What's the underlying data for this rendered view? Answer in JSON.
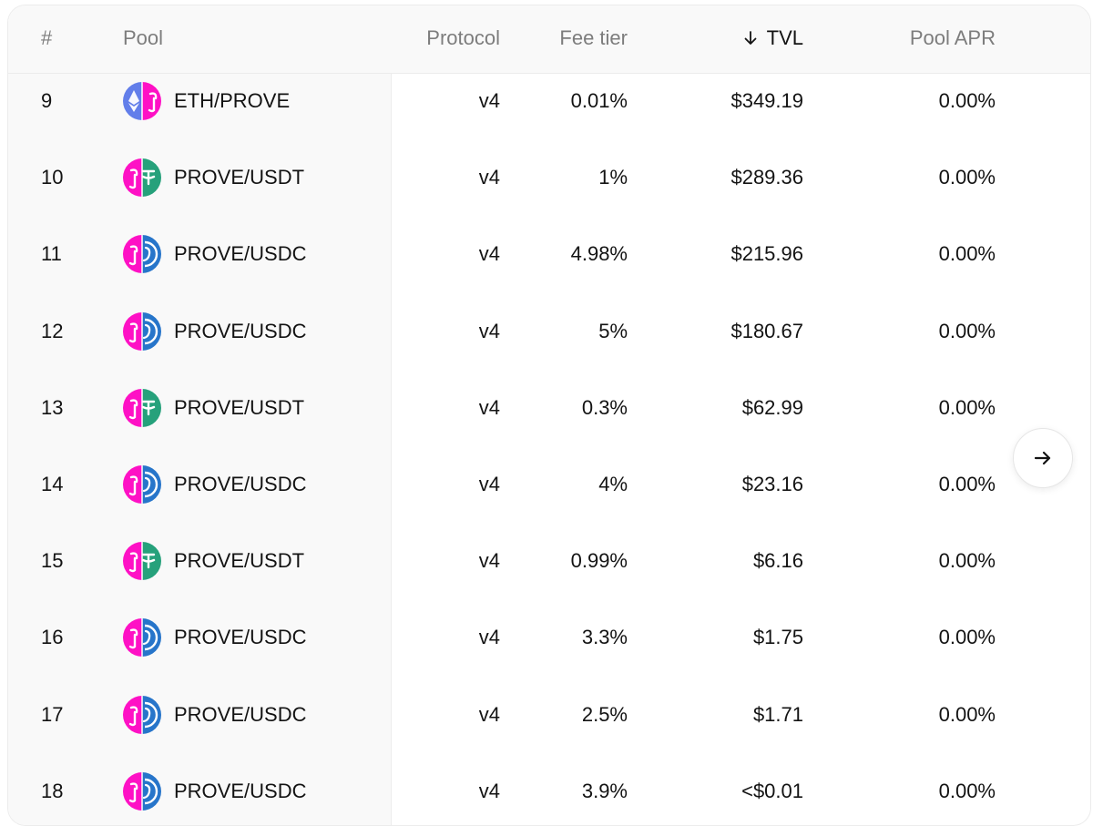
{
  "table": {
    "headers": {
      "index": "#",
      "pool": "Pool",
      "protocol": "Protocol",
      "fee_tier": "Fee tier",
      "tvl": "TVL",
      "pool_apr": "Pool APR"
    },
    "sort": {
      "column": "tvl",
      "direction": "desc",
      "icon": "arrow-down-icon"
    },
    "rows": [
      {
        "index": "9",
        "pool": "ETH/PROVE",
        "protocol": "v4",
        "fee_tier": "0.01%",
        "tvl": "$349.19",
        "pool_apr": "0.00%",
        "icon_pair": [
          "eth",
          "prove"
        ]
      },
      {
        "index": "10",
        "pool": "PROVE/USDT",
        "protocol": "v4",
        "fee_tier": "1%",
        "tvl": "$289.36",
        "pool_apr": "0.00%",
        "icon_pair": [
          "prove",
          "usdt"
        ]
      },
      {
        "index": "11",
        "pool": "PROVE/USDC",
        "protocol": "v4",
        "fee_tier": "4.98%",
        "tvl": "$215.96",
        "pool_apr": "0.00%",
        "icon_pair": [
          "prove",
          "usdc"
        ]
      },
      {
        "index": "12",
        "pool": "PROVE/USDC",
        "protocol": "v4",
        "fee_tier": "5%",
        "tvl": "$180.67",
        "pool_apr": "0.00%",
        "icon_pair": [
          "prove",
          "usdc"
        ]
      },
      {
        "index": "13",
        "pool": "PROVE/USDT",
        "protocol": "v4",
        "fee_tier": "0.3%",
        "tvl": "$62.99",
        "pool_apr": "0.00%",
        "icon_pair": [
          "prove",
          "usdt"
        ]
      },
      {
        "index": "14",
        "pool": "PROVE/USDC",
        "protocol": "v4",
        "fee_tier": "4%",
        "tvl": "$23.16",
        "pool_apr": "0.00%",
        "icon_pair": [
          "prove",
          "usdc"
        ]
      },
      {
        "index": "15",
        "pool": "PROVE/USDT",
        "protocol": "v4",
        "fee_tier": "0.99%",
        "tvl": "$6.16",
        "pool_apr": "0.00%",
        "icon_pair": [
          "prove",
          "usdt"
        ]
      },
      {
        "index": "16",
        "pool": "PROVE/USDC",
        "protocol": "v4",
        "fee_tier": "3.3%",
        "tvl": "$1.75",
        "pool_apr": "0.00%",
        "icon_pair": [
          "prove",
          "usdc"
        ]
      },
      {
        "index": "17",
        "pool": "PROVE/USDC",
        "protocol": "v4",
        "fee_tier": "2.5%",
        "tvl": "$1.71",
        "pool_apr": "0.00%",
        "icon_pair": [
          "prove",
          "usdc"
        ]
      },
      {
        "index": "18",
        "pool": "PROVE/USDC",
        "protocol": "v4",
        "fee_tier": "3.9%",
        "tvl": "<$0.01",
        "pool_apr": "0.00%",
        "icon_pair": [
          "prove",
          "usdc"
        ]
      }
    ]
  },
  "scroll_button": {
    "icon": "arrow-right-icon"
  },
  "colors": {
    "eth": "#627EEA",
    "prove": "#FE11C5",
    "usdt": "#26A17B",
    "usdc": "#2775CA",
    "header_text": "#7D7D7D",
    "text": "#131313"
  }
}
